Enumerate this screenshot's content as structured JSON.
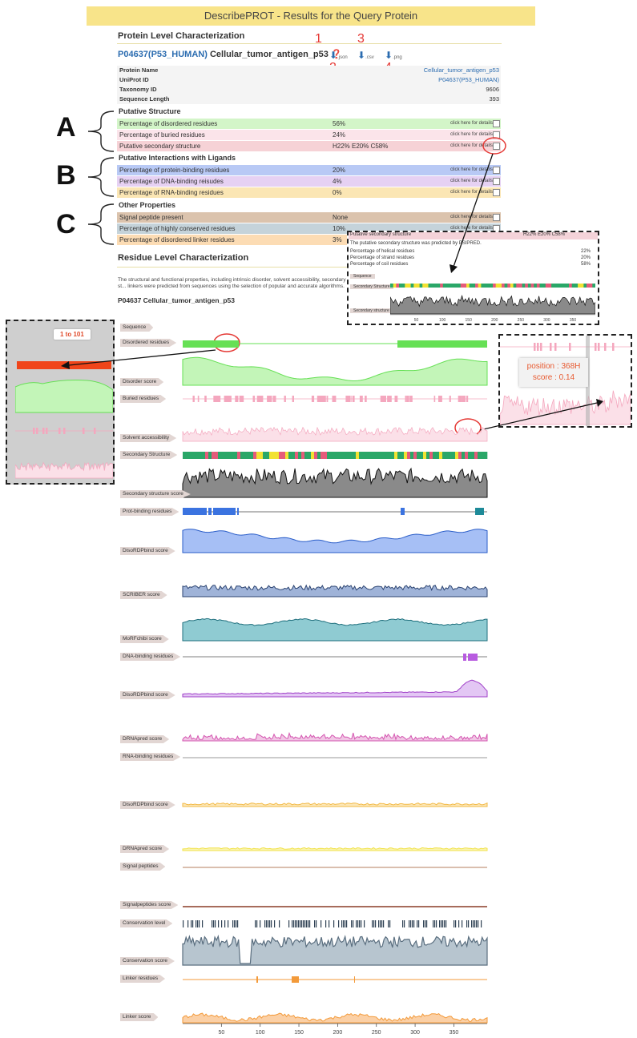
{
  "title": "DescribePROT - Results for the Query Protein",
  "protein_level_heading": "Protein Level Characterization",
  "protein_header": {
    "accession": "P04637(P53_HUMAN)",
    "name": "Cellular_tumor_antigen_p53",
    "downloads": [
      ".json",
      ".csv",
      ".png"
    ]
  },
  "callout_numbers": [
    "1",
    "2",
    "3",
    "4"
  ],
  "info_rows": [
    {
      "label": "Protein Name",
      "value": "Cellular_tumor_antigen_p53"
    },
    {
      "label": "UniProt ID",
      "value": "P04637(P53_HUMAN)"
    },
    {
      "label": "Taxonomy ID",
      "value": "9606"
    },
    {
      "label": "Sequence Length",
      "value": "393"
    }
  ],
  "groups": {
    "A": {
      "letter": "A",
      "heading": "Putative Structure"
    },
    "B": {
      "letter": "B",
      "heading": "Putative Interactions with Ligands"
    },
    "C": {
      "letter": "C",
      "heading": "Other Properties"
    }
  },
  "click_text": "click here for details",
  "properties": [
    {
      "label": "Percentage of disordered residues",
      "value": "56%",
      "color": "#d3f5c8"
    },
    {
      "label": "Percentage of buried residues",
      "value": "24%",
      "color": "#fbe4ea"
    },
    {
      "label": "Putative secondary structure",
      "value": "H22% E20% C58%",
      "color": "#f6d2d6"
    },
    {
      "label": "Percentage of protein-binding residues",
      "value": "20%",
      "color": "#b8c9f5"
    },
    {
      "label": "Percentage of DNA-binding reisudes",
      "value": "4%",
      "color": "#e6d1f3"
    },
    {
      "label": "Percentage of RNA-binding residues",
      "value": "0%",
      "color": "#fbe6b4"
    },
    {
      "label": "Signal peptide present",
      "value": "None",
      "color": "#dbc3ad"
    },
    {
      "label": "Percentage of highly conserved residues",
      "value": "10%",
      "color": "#c5d3da"
    },
    {
      "label": "Percentage of disordered linker residues",
      "value": "3%",
      "color": "#fcdcb4"
    }
  ],
  "residue_level_heading": "Residue Level Characterization",
  "residue_desc": "The structural and functional properties, including intrinsic disorder, solvent accessibility, secondary st... linkers were predicted from sequences using the selection of popular and accurate algorithms.",
  "residue_protein_label": "P04637 Cellular_tumor_antigen_p53",
  "popup_secondary": {
    "title": "Putative secondary structure",
    "value": "H22% E20% C58%",
    "desc": "The putative secondary structure was predicted by PSIPRED.",
    "rows": [
      {
        "label": "Percentage of helical residues",
        "value": "22%"
      },
      {
        "label": "Percentage of strand residues",
        "value": "20%"
      },
      {
        "label": "Percentage of coil residues",
        "value": "58%"
      }
    ],
    "track_labels": [
      "Sequence",
      "Secondary Structure",
      "Secondary structure score"
    ],
    "ticks": [
      "50",
      "100",
      "150",
      "200",
      "250",
      "300",
      "350"
    ]
  },
  "zoom_left": {
    "tooltip": "1 to 101"
  },
  "zoom_right": {
    "position": "position : 368H",
    "score": "score : 0.14"
  },
  "tracks": [
    "Sequence",
    "Disordered residues",
    "Disorder score",
    "Buried residues",
    "Solvent accessibility",
    "Secondary Structure",
    "Secondary structure score",
    "Prot-binding residues",
    "DisoRDPbind score",
    "SCRIBER score",
    "MoRFchibi score",
    "DNA-binding residues",
    "DisoRDPbind score",
    "DRNApred score",
    "RNA-binding residues",
    "DisoRDPbind score",
    "DRNApred score",
    "Signal peptides",
    "Signalpeptides score",
    "Conservation level",
    "Conservation score",
    "Linker residues",
    "Linker score"
  ],
  "axis_ticks": [
    "50",
    "100",
    "150",
    "200",
    "250",
    "300",
    "350"
  ],
  "colors": {
    "disorder": "#66e055",
    "disorder_fill": "#c3f5b8",
    "buried": "#f4a7be",
    "solvent_fill": "#fbe0e8",
    "ss_helix": "#e55b7a",
    "ss_strand": "#f2e232",
    "ss_coil": "#2aa768",
    "protbind": "#3b73e0",
    "protbind_fill": "#a6bff5",
    "scriber_fill": "#9fb3d8",
    "morf_fill": "#8fcbd2",
    "dna": "#b85ce0",
    "dna_fill": "#e3c7f4",
    "drnapred": "#d455b0",
    "rna_line": "#777777",
    "rna_disordp": "#f2b843",
    "rna_drnapred": "#f1e24a",
    "signal": "#b57c5e",
    "cons_fill": "#b7c5cf",
    "cons_line": "#5a6e7f",
    "linker": "#f39a3a",
    "linker_fill": "#fbd0a6",
    "callout_red": "#e53935"
  }
}
